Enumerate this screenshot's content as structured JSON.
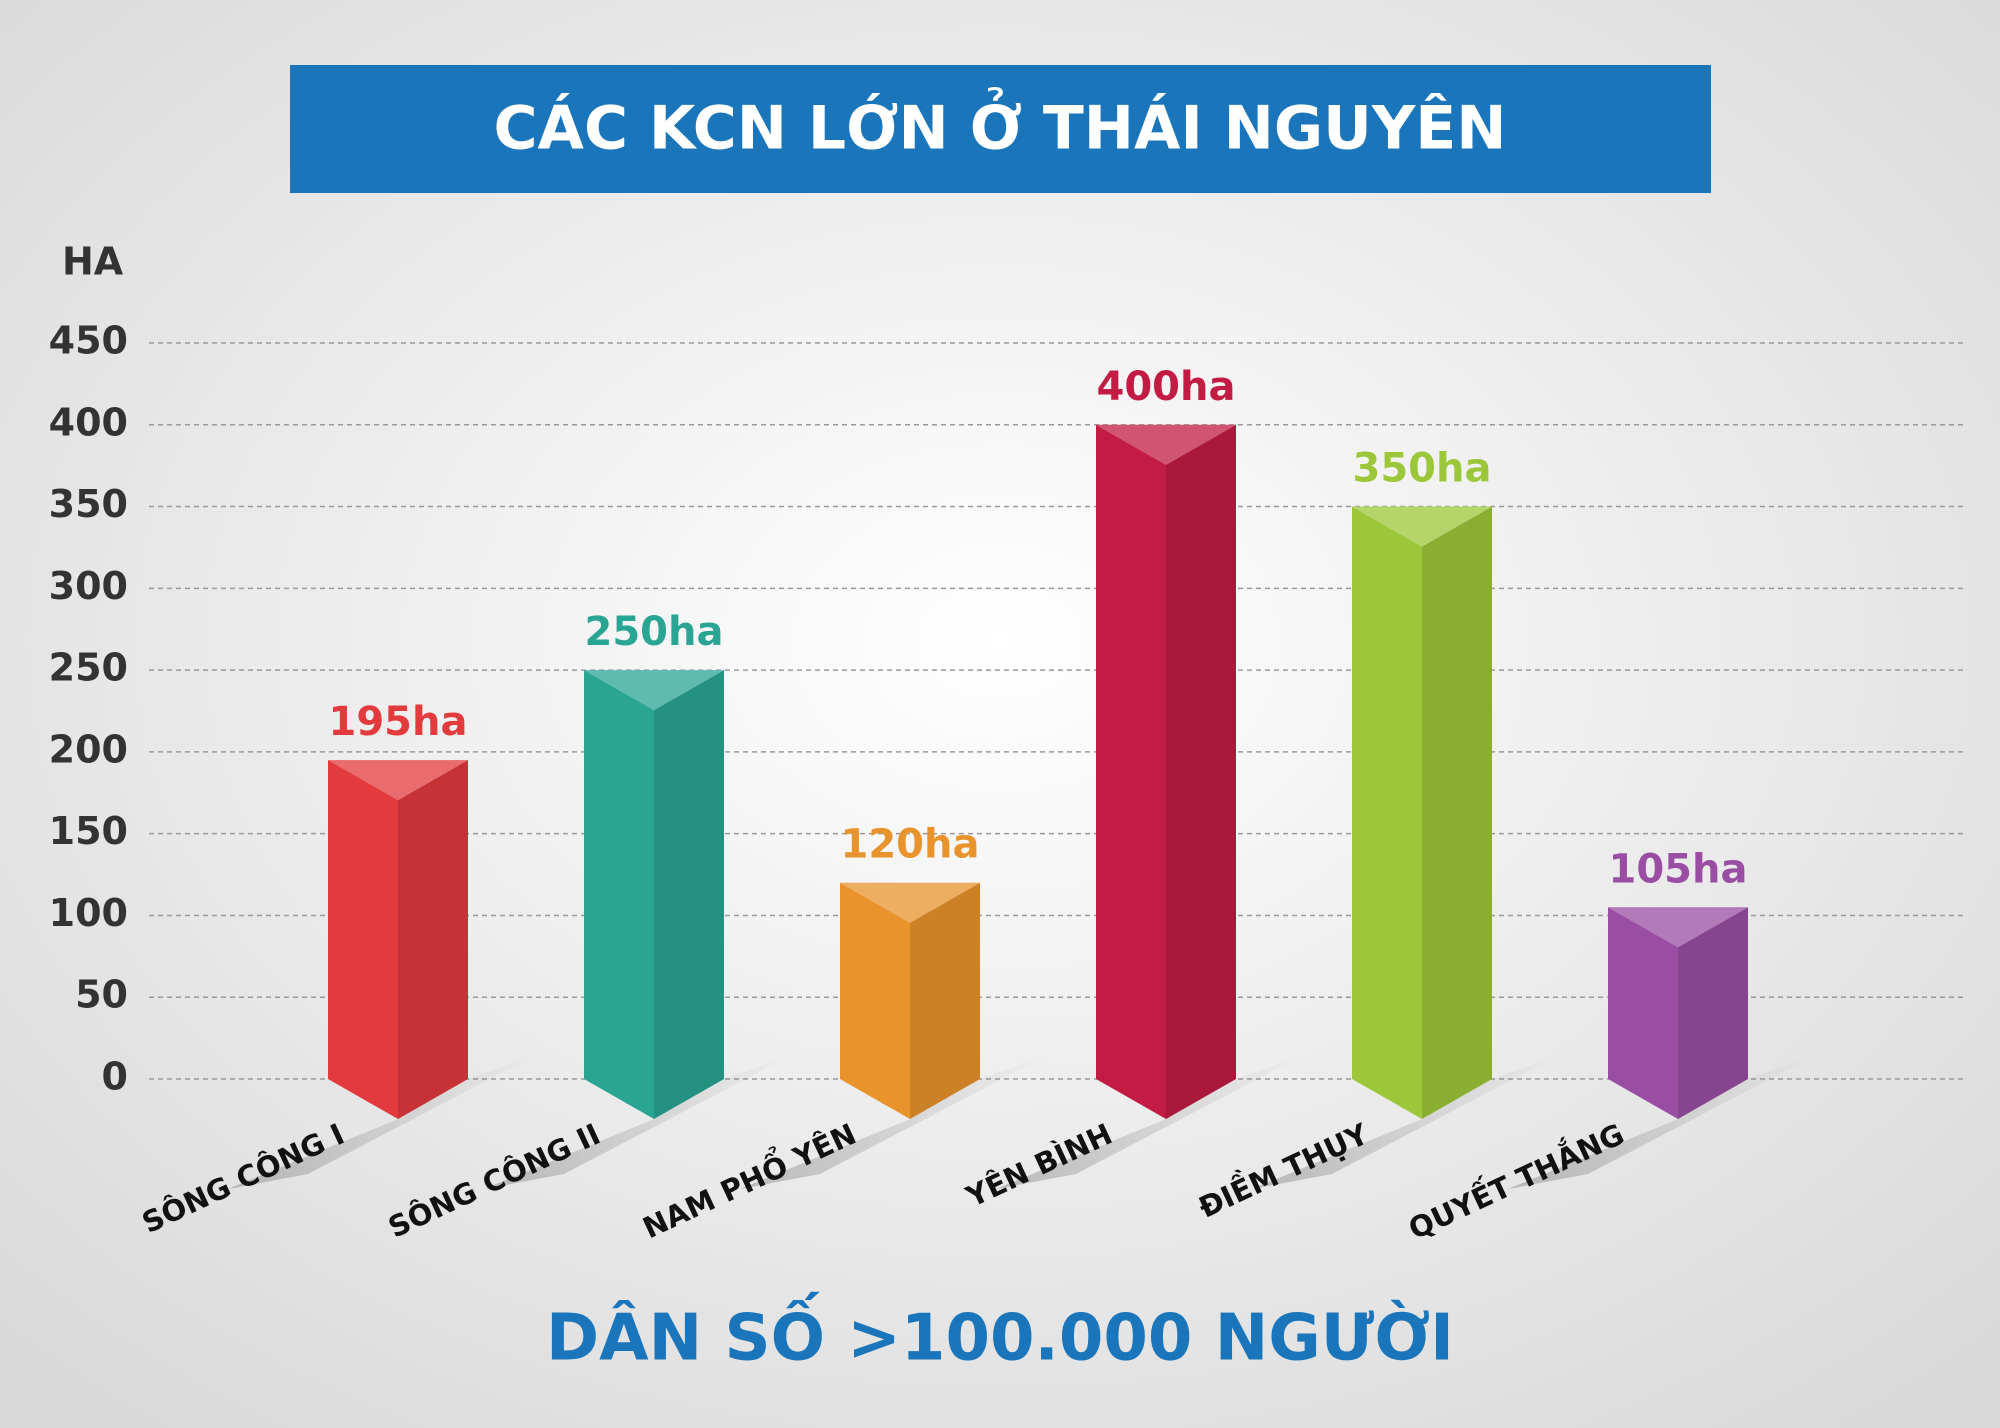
{
  "chart_data": {
    "type": "bar",
    "title": "CÁC KCN LỚN Ở THÁI NGUYÊN",
    "y_label": "HA",
    "footer": "DÂN SỐ >100.000 NGƯỜI",
    "categories": [
      "SÔNG CÔNG I",
      "SÔNG CÔNG II",
      "NAM PHỔ YÊN",
      "YÊN BÌNH",
      "ĐIỀM THỤY",
      "QUYẾT THẮNG"
    ],
    "values": [
      195,
      250,
      120,
      400,
      350,
      105
    ],
    "value_labels": [
      "195ha",
      "250ha",
      "120ha",
      "400ha",
      "350ha",
      "105ha"
    ],
    "colors": [
      "#e23a3d",
      "#2aa594",
      "#e9932d",
      "#c21c44",
      "#9dc73a",
      "#9a4ea3"
    ],
    "ylim": [
      0,
      450
    ],
    "yticks": [
      0,
      50,
      100,
      150,
      200,
      250,
      300,
      350,
      400,
      450
    ],
    "grid": true
  }
}
